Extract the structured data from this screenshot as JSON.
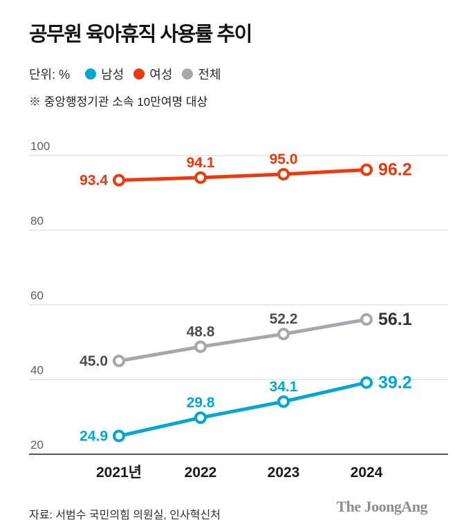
{
  "title": "공무원 육아휴직 사용률 추이",
  "legend": {
    "unit_label": "단위: %",
    "items": [
      {
        "label": "남성",
        "color": "#00a6d2"
      },
      {
        "label": "여성",
        "color": "#ec3a0e"
      },
      {
        "label": "전체",
        "color": "#a9a5ab"
      }
    ]
  },
  "note": "※ 중앙행정기관 소속 10만여명 대상",
  "footer": {
    "source": "자료: 서범수 국민의힘 의원실, 인사혁신처",
    "logo": "The JoongAng"
  },
  "chart_data": {
    "type": "line",
    "title": "공무원 육아휴직 사용률 추이",
    "categories": [
      "2021년",
      "2022",
      "2023",
      "2024"
    ],
    "series": [
      {
        "name": "남성",
        "color": "#00a6d2",
        "label_color": "#00a6d2",
        "final_label_color": "#00a6d2",
        "values": [
          24.9,
          29.8,
          34.1,
          39.2
        ]
      },
      {
        "name": "여성",
        "color": "#ec3a0e",
        "label_color": "#e8360d",
        "final_label_color": "#e8360d",
        "values": [
          93.4,
          94.1,
          95.0,
          96.2
        ]
      },
      {
        "name": "전체",
        "color": "#a9a5ab",
        "label_color": "#4d4d4d",
        "final_label_color": "#333333",
        "values": [
          45.0,
          48.8,
          52.2,
          56.1
        ]
      }
    ],
    "xlabel": "",
    "ylabel": "%",
    "ylim": [
      20,
      100
    ],
    "yticks": [
      100,
      80,
      60,
      40,
      20
    ],
    "grid": true,
    "legend_position": "top"
  }
}
